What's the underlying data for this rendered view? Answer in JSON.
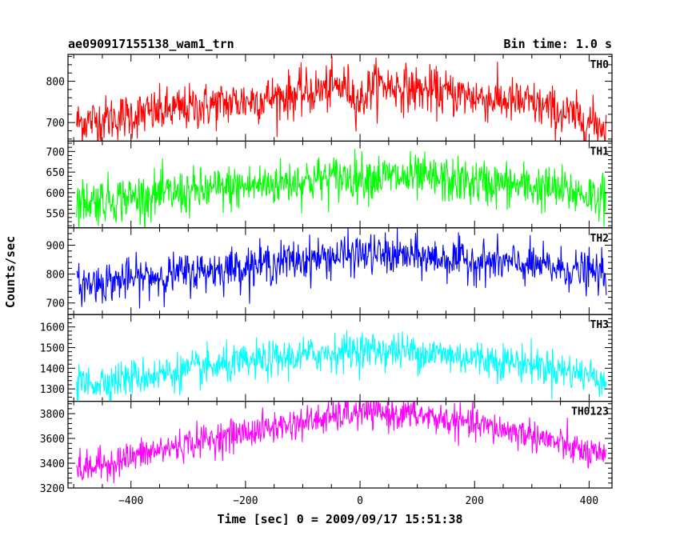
{
  "chart_data": {
    "type": "line",
    "title_left": "ae090917155138_wam1_trn",
    "title_right": "Bin time: 1.0 s",
    "xlabel": "Time [sec] 0 = 2009/09/17 15:51:38",
    "ylabel": "Counts/sec",
    "xlim": [
      -510,
      440
    ],
    "x_start": -495,
    "x_end": 430,
    "x_step": 1,
    "x_ticks": [
      -400,
      -200,
      0,
      200,
      400
    ],
    "x_tick_labels": [
      "−400",
      "−200",
      "0",
      "200",
      "400"
    ],
    "grid": false,
    "panels": [
      {
        "name": "TH0",
        "color": "#ff0000",
        "ylim": [
          655,
          865
        ],
        "y_ticks": [
          700,
          800
        ],
        "y_tick_labels": [
          "700",
          "800"
        ],
        "y_minor_step": 20,
        "baseline": [
          [
            -495,
            700
          ],
          [
            -300,
            735
          ],
          [
            -100,
            770
          ],
          [
            -20,
            790
          ],
          [
            20,
            795
          ],
          [
            100,
            780
          ],
          [
            300,
            745
          ],
          [
            430,
            690
          ]
        ],
        "noise": 28,
        "dip": {
          "x": 0,
          "depth": 40,
          "width": 15
        }
      },
      {
        "name": "TH1",
        "color": "#00ff00",
        "ylim": [
          515,
          725
        ],
        "y_ticks": [
          550,
          600,
          650,
          700
        ],
        "y_tick_labels": [
          "550",
          "600",
          "650",
          "700"
        ],
        "y_minor_step": 10,
        "baseline": [
          [
            -495,
            578
          ],
          [
            -300,
            600
          ],
          [
            -100,
            630
          ],
          [
            0,
            640
          ],
          [
            100,
            635
          ],
          [
            300,
            615
          ],
          [
            430,
            590
          ]
        ],
        "noise": 28
      },
      {
        "name": "TH2",
        "color": "#0000ff",
        "ylim": [
          660,
          960
        ],
        "y_ticks": [
          700,
          800,
          900
        ],
        "y_tick_labels": [
          "700",
          "800",
          "900"
        ],
        "y_minor_step": 20,
        "baseline": [
          [
            -495,
            762
          ],
          [
            -300,
            805
          ],
          [
            -100,
            850
          ],
          [
            0,
            870
          ],
          [
            100,
            860
          ],
          [
            300,
            830
          ],
          [
            430,
            800
          ]
        ],
        "noise": 35
      },
      {
        "name": "TH3",
        "color": "#00ffff",
        "ylim": [
          1240,
          1660
        ],
        "y_ticks": [
          1300,
          1400,
          1500,
          1600
        ],
        "y_tick_labels": [
          "1300",
          "1400",
          "1500",
          "1600"
        ],
        "y_minor_step": 20,
        "baseline": [
          [
            -495,
            1320
          ],
          [
            -300,
            1390
          ],
          [
            -100,
            1460
          ],
          [
            0,
            1490
          ],
          [
            100,
            1480
          ],
          [
            300,
            1420
          ],
          [
            430,
            1350
          ]
        ],
        "noise": 45
      },
      {
        "name": "TH0123",
        "color": "#ff00ff",
        "ylim": [
          3200,
          3900
        ],
        "y_ticks": [
          3200,
          3400,
          3600,
          3800
        ],
        "y_tick_labels": [
          "3200",
          "3400",
          "3600",
          "3800"
        ],
        "y_minor_step": 40,
        "baseline": [
          [
            -495,
            3340
          ],
          [
            -300,
            3560
          ],
          [
            -150,
            3690
          ],
          [
            0,
            3810
          ],
          [
            100,
            3790
          ],
          [
            300,
            3630
          ],
          [
            430,
            3430
          ]
        ],
        "noise": 65
      }
    ]
  }
}
